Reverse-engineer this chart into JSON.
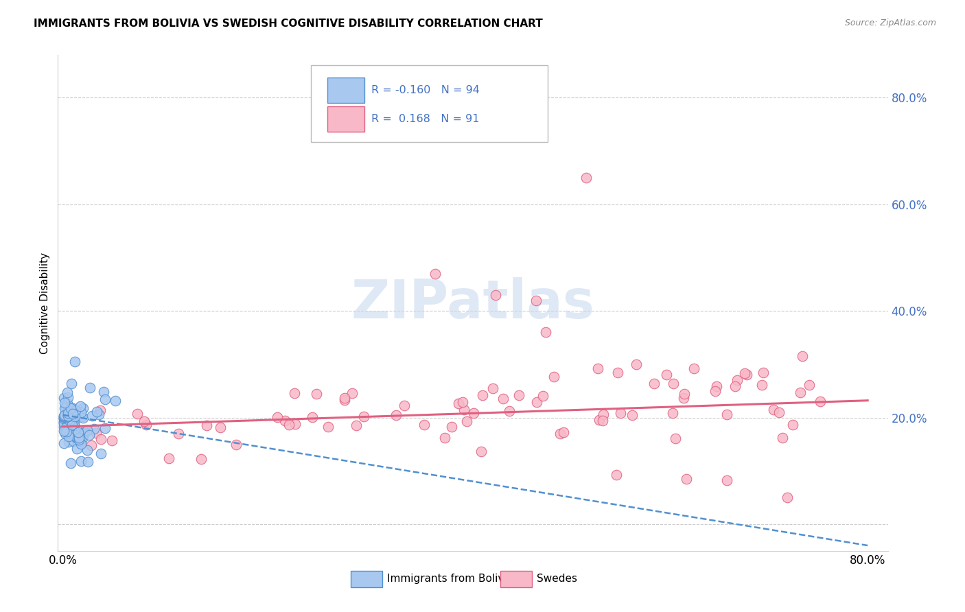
{
  "title": "IMMIGRANTS FROM BOLIVIA VS SWEDISH COGNITIVE DISABILITY CORRELATION CHART",
  "source": "Source: ZipAtlas.com",
  "ylabel": "Cognitive Disability",
  "legend_label1": "Immigrants from Bolivia",
  "legend_label2": "Swedes",
  "R1": "-0.160",
  "N1": "94",
  "R2": "0.168",
  "N2": "91",
  "xlim": [
    -0.005,
    0.82
  ],
  "ylim": [
    -0.05,
    0.88
  ],
  "color_blue_fill": "#A8C8F0",
  "color_blue_edge": "#5090D0",
  "color_pink_fill": "#F8B8C8",
  "color_pink_edge": "#E06080",
  "color_blue_line": "#5090D0",
  "color_pink_line": "#E06080",
  "color_axis_label": "#4472C4",
  "color_grid": "#CCCCCC",
  "ytick_vals": [
    0.0,
    0.2,
    0.4,
    0.6,
    0.8
  ],
  "ytick_labels": [
    "",
    "20.0%",
    "40.0%",
    "60.0%",
    "80.0%"
  ],
  "xtick_vals": [
    0.0,
    0.8
  ],
  "xtick_labels": [
    "0.0%",
    "80.0%"
  ],
  "blue_trend_x": [
    0.0,
    0.8
  ],
  "blue_trend_y": [
    0.205,
    -0.04
  ],
  "pink_trend_x": [
    0.0,
    0.8
  ],
  "pink_trend_y": [
    0.183,
    0.232
  ]
}
